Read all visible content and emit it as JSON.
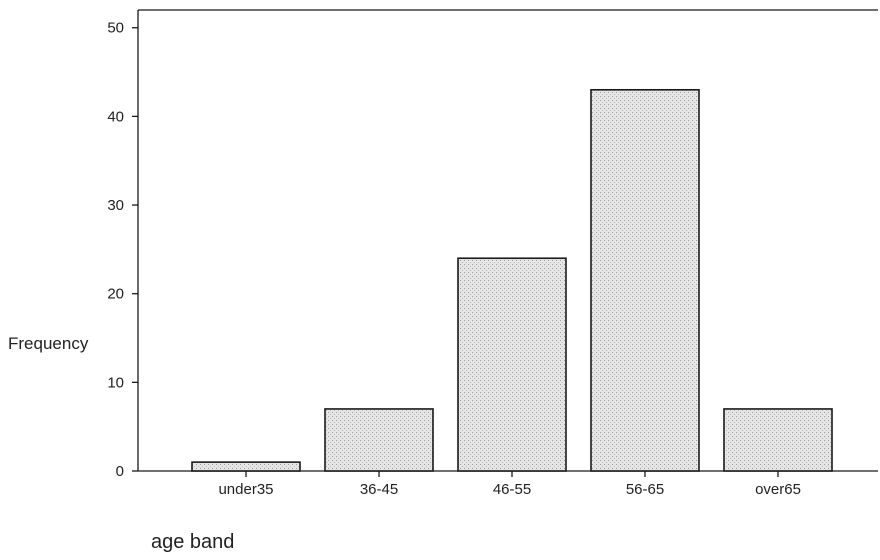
{
  "chart_data": {
    "type": "bar",
    "categories": [
      "under35",
      "36-45",
      "46-55",
      "56-65",
      "over65"
    ],
    "values": [
      1,
      7,
      24,
      43,
      7
    ],
    "title": "",
    "xlabel": "age band",
    "ylabel": "Frequency",
    "ylim": [
      0,
      52
    ],
    "yticks": [
      0,
      10,
      20,
      30,
      40,
      50
    ],
    "grid": false,
    "colors": {
      "bar_fill": "#e3e3e3",
      "bar_stroke": "#1a1a1a"
    }
  }
}
